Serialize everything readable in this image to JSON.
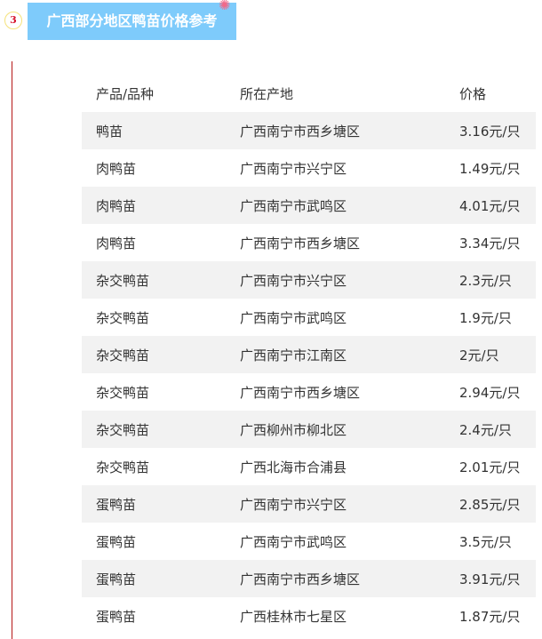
{
  "section": {
    "number": "3",
    "title": "广西部分地区鸭苗价格参考"
  },
  "table": {
    "headers": [
      "产品/品种",
      "所在产地",
      "价格"
    ],
    "rows": [
      [
        "鸭苗",
        "广西南宁市西乡塘区",
        "3.16元/只"
      ],
      [
        "肉鸭苗",
        "广西南宁市兴宁区",
        "1.49元/只"
      ],
      [
        "肉鸭苗",
        "广西南宁市武鸣区",
        "4.01元/只"
      ],
      [
        "肉鸭苗",
        "广西南宁市西乡塘区",
        "3.34元/只"
      ],
      [
        "杂交鸭苗",
        "广西南宁市兴宁区",
        "2.3元/只"
      ],
      [
        "杂交鸭苗",
        "广西南宁市武鸣区",
        "1.9元/只"
      ],
      [
        "杂交鸭苗",
        "广西南宁市江南区",
        "2元/只"
      ],
      [
        "杂交鸭苗",
        "广西南宁市西乡塘区",
        "2.94元/只"
      ],
      [
        "杂交鸭苗",
        "广西柳州市柳北区",
        "2.4元/只"
      ],
      [
        "杂交鸭苗",
        "广西北海市合浦县",
        "2.01元/只"
      ],
      [
        "蛋鸭苗",
        "广西南宁市兴宁区",
        "2.85元/只"
      ],
      [
        "蛋鸭苗",
        "广西南宁市武鸣区",
        "3.5元/只"
      ],
      [
        "蛋鸭苗",
        "广西南宁市西乡塘区",
        "3.91元/只"
      ],
      [
        "蛋鸭苗",
        "广西桂林市七星区",
        "1.87元/只"
      ]
    ]
  }
}
